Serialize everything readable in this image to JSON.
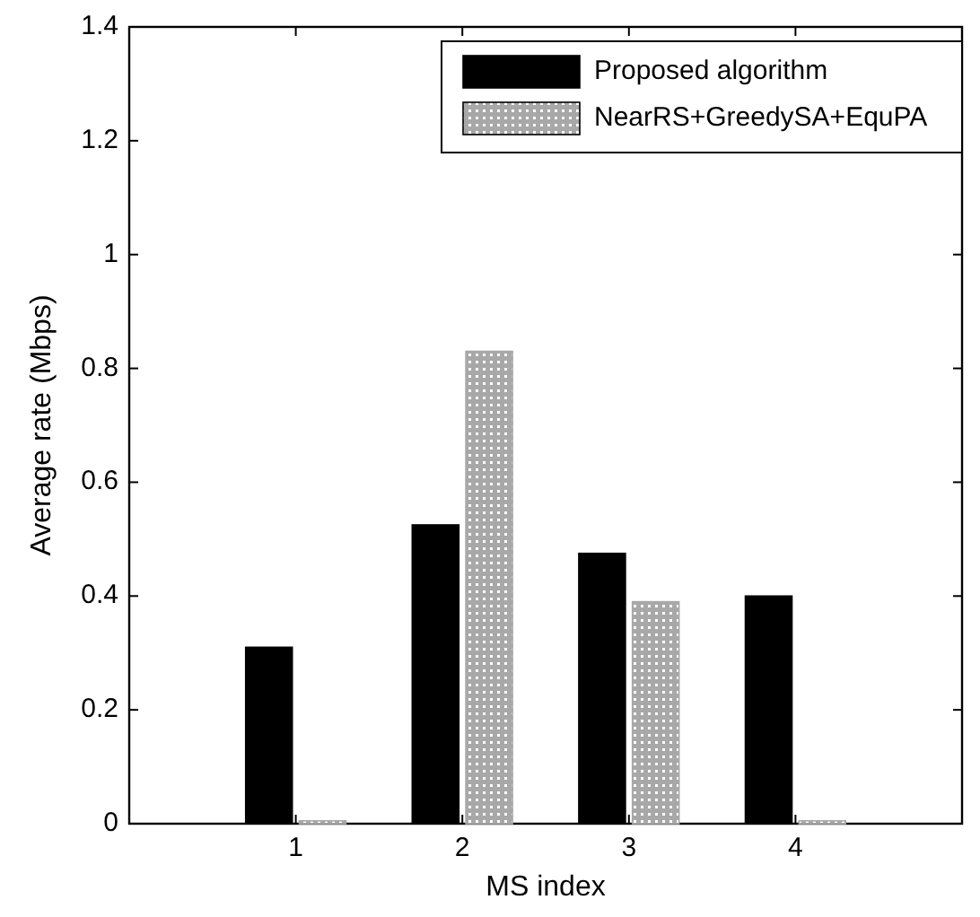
{
  "chart_data": {
    "type": "bar",
    "xlabel": "MS index",
    "ylabel": "Average rate (Mbps)",
    "x": [
      1,
      2,
      3,
      4
    ],
    "xlim": [
      0,
      5
    ],
    "xticks": [
      1,
      2,
      3,
      4
    ],
    "ylim": [
      0,
      1.4
    ],
    "yticks": [
      0,
      0.2,
      0.4,
      0.6,
      0.8,
      1,
      1.2,
      1.4
    ],
    "series": [
      {
        "name": "Proposed algorithm",
        "color": "#000000",
        "values": [
          0.31,
          0.525,
          0.475,
          0.4
        ]
      },
      {
        "name": "NearRS+GreedySA+EquPA",
        "color": "#a8a8a8",
        "values": [
          0.005,
          0.83,
          0.39,
          0.005
        ]
      }
    ],
    "grid": false,
    "legend": "top right"
  }
}
